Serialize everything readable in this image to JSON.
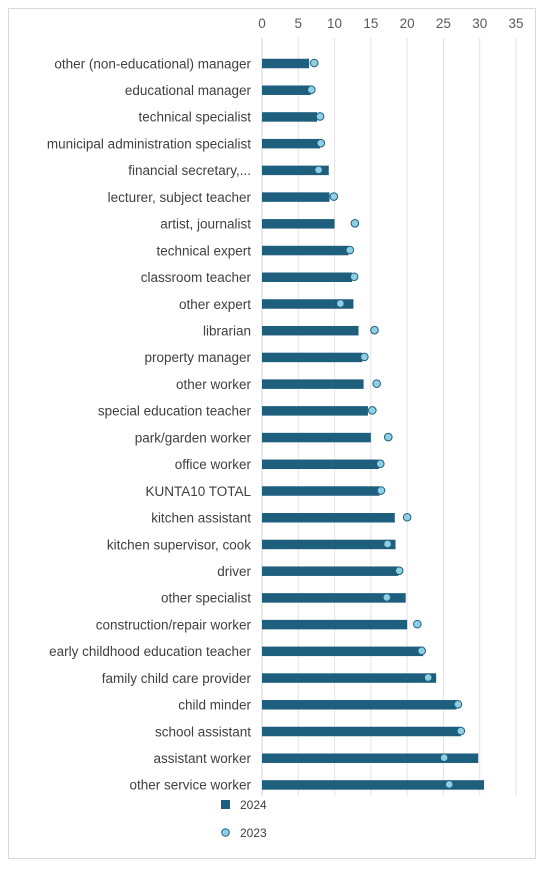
{
  "chart_data": {
    "type": "bar",
    "orientation": "horizontal",
    "xlim": [
      0,
      35
    ],
    "x_ticks": [
      "0",
      "5",
      "10",
      "15",
      "20",
      "25",
      "30",
      "35"
    ],
    "tick_values": [
      0,
      5,
      10,
      15,
      20,
      25,
      30,
      35
    ],
    "grid": true,
    "legend_position": "bottom-left",
    "categories": [
      "other (non-educational) manager",
      "educational manager",
      "technical specialist",
      "municipal administration specialist",
      "financial secretary,...",
      "lecturer, subject teacher",
      "artist, journalist",
      "technical expert",
      "classroom teacher",
      "other expert",
      "librarian",
      "property manager",
      "other worker",
      "special education teacher",
      "park/garden worker",
      "office worker",
      "KUNTA10 TOTAL",
      "kitchen assistant",
      "kitchen supervisor, cook",
      "driver",
      "other specialist",
      "construction/repair worker",
      "early childhood education teacher",
      "family child care provider",
      "child minder",
      "school assistant",
      "assistant worker",
      "other service worker"
    ],
    "series": [
      {
        "name": "2024",
        "mark": "bar",
        "color": "#1f5f7e",
        "values": [
          6.5,
          6.7,
          7.6,
          8.0,
          9.2,
          9.3,
          10.0,
          11.9,
          12.4,
          12.6,
          13.3,
          13.8,
          14.0,
          14.6,
          15.0,
          16.1,
          16.2,
          18.3,
          18.4,
          18.8,
          19.8,
          20.0,
          22.2,
          24.0,
          26.8,
          27.4,
          29.8,
          30.6
        ]
      },
      {
        "name": "2023",
        "mark": "marker",
        "color": "#8fcfe3",
        "values": [
          7.2,
          6.8,
          8.0,
          8.1,
          7.8,
          9.9,
          12.8,
          12.1,
          12.7,
          10.8,
          15.5,
          14.1,
          15.8,
          15.2,
          17.4,
          16.3,
          16.4,
          20.0,
          17.3,
          18.9,
          17.2,
          21.4,
          22.0,
          22.9,
          27.0,
          27.4,
          25.1,
          25.8
        ]
      }
    ]
  }
}
